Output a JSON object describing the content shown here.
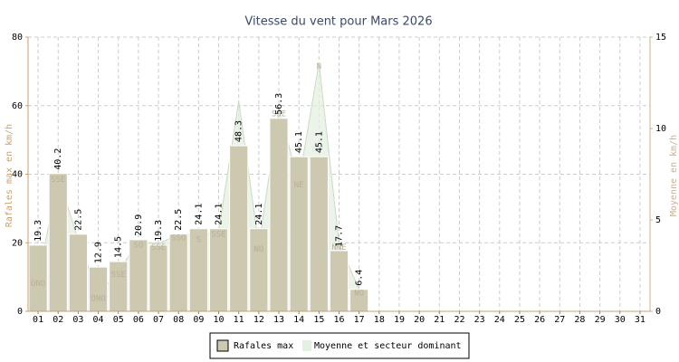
{
  "chart_data": {
    "type": "bar",
    "title": "Vitesse du vent pour Mars 2026",
    "y_label": "Rafales max en km/h",
    "y2_label": "Moyenne en km/h",
    "categories": [
      "01",
      "02",
      "03",
      "04",
      "05",
      "06",
      "07",
      "08",
      "09",
      "10",
      "11",
      "12",
      "13",
      "14",
      "15",
      "16",
      "17",
      "18",
      "19",
      "20",
      "21",
      "22",
      "23",
      "24",
      "25",
      "26",
      "27",
      "28",
      "29",
      "30",
      "31"
    ],
    "series": [
      {
        "name": "Rafales max",
        "color": "#cdc8b0",
        "values": [
          19.3,
          40.2,
          22.5,
          12.9,
          14.5,
          20.9,
          19.3,
          22.5,
          24.1,
          24.1,
          48.3,
          24.1,
          56.3,
          45.1,
          45.1,
          17.7,
          6.4,
          null,
          null,
          null,
          null,
          null,
          null,
          null,
          null,
          null,
          null,
          null,
          null,
          null,
          null
        ]
      },
      {
        "name": "Moyenne et secteur dominant",
        "color": "#e4f0e0",
        "axis": "y2",
        "values": [
          1.7,
          7.4,
          3.9,
          0.9,
          2.2,
          3.8,
          3.7,
          4.2,
          4.1,
          4.4,
          11.5,
          3.6,
          11.0,
          7.1,
          13.6,
          3.7,
          1.2,
          null,
          null,
          null,
          null,
          null,
          null,
          null,
          null,
          null,
          null,
          null,
          null,
          null,
          null
        ],
        "sectors": [
          "ONO",
          "SSE",
          null,
          "ONO",
          "SSE",
          "SO",
          "SSE",
          "SSO",
          "S",
          "SSE",
          null,
          "NO",
          "SSE",
          "NE",
          "N",
          "NNE",
          "NO",
          null,
          null,
          null,
          null,
          null,
          null,
          null,
          null,
          null,
          null,
          null,
          null,
          null,
          null
        ]
      }
    ],
    "ylim": [
      0,
      80
    ],
    "yticks": [
      0,
      20,
      40,
      60,
      80
    ],
    "y2lim": [
      0,
      15
    ],
    "y2ticks": [
      0,
      5,
      10,
      15
    ],
    "grid": true
  }
}
